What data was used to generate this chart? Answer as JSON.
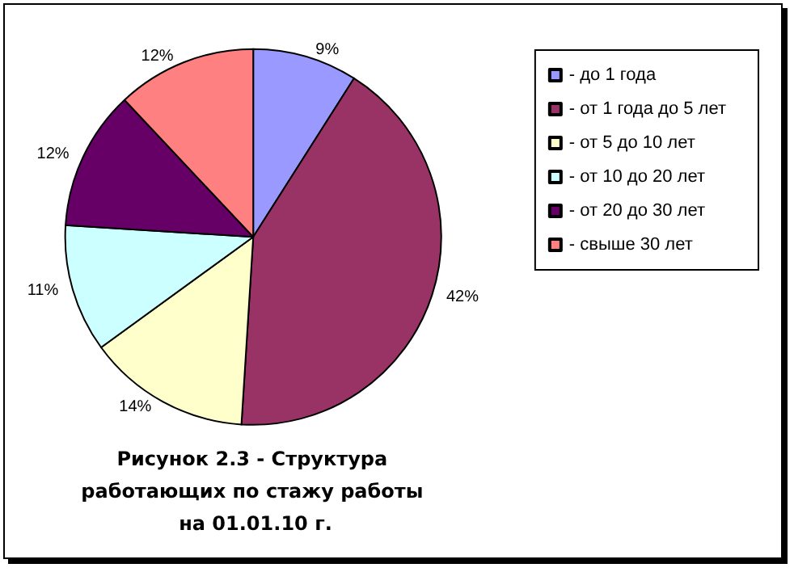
{
  "chart_data": {
    "type": "pie",
    "title": "Рисунок 2.3 - Структура работающих по стажу работы на 01.01.10 г.",
    "categories": [
      "- до 1 года",
      "- от 1 года до 5 лет",
      "- от 5 до 10 лет",
      "- от 10 до 20 лет",
      "- от 20 до 30 лет",
      "- свыше 30 лет"
    ],
    "values": [
      9,
      42,
      14,
      11,
      12,
      12
    ],
    "value_labels": [
      "9%",
      "42%",
      "14%",
      "11%",
      "12%",
      "12%"
    ],
    "colors": [
      "#9999ff",
      "#993366",
      "#ffffcc",
      "#ccffff",
      "#660066",
      "#ff8080"
    ],
    "legend": "right"
  }
}
